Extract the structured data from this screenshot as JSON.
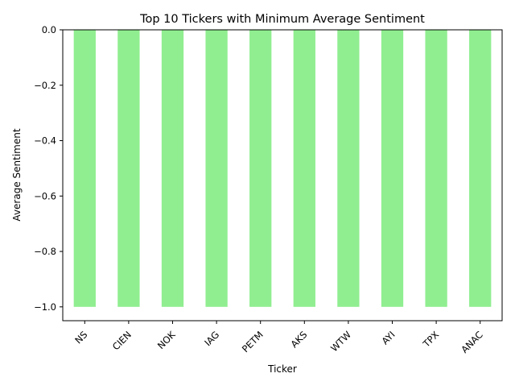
{
  "chart_data": {
    "type": "bar",
    "title": "Top 10 Tickers with Minimum Average Sentiment",
    "xlabel": "Ticker",
    "ylabel": "Average Sentiment",
    "categories": [
      "NS",
      "CIEN",
      "NOK",
      "IAG",
      "PETM",
      "AKS",
      "WTW",
      "AYI",
      "TPX",
      "ANAC"
    ],
    "values": [
      -1.0,
      -1.0,
      -1.0,
      -1.0,
      -1.0,
      -1.0,
      -1.0,
      -1.0,
      -1.0,
      -1.0
    ],
    "ylim": [
      -1.05,
      0.0
    ],
    "yticks": [
      0.0,
      -0.2,
      -0.4,
      -0.6,
      -0.8,
      -1.0
    ],
    "ytick_labels": [
      "0.0",
      "−0.2",
      "−0.4",
      "−0.6",
      "−0.8",
      "−1.0"
    ],
    "bar_color": "#90EE90",
    "grid": false,
    "legend": false
  }
}
